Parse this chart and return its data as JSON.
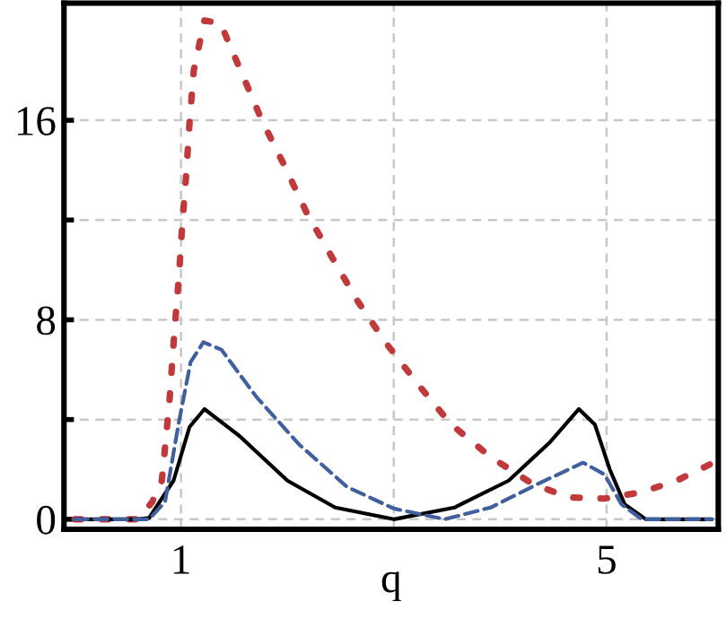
{
  "chart_data": {
    "type": "line",
    "xlabel": "q",
    "xlim": [
      -0.1,
      6.05
    ],
    "ylim": [
      -0.4,
      20.7
    ],
    "xticks": [
      1,
      {
        "value": 3,
        "label": null
      },
      5
    ],
    "yticks": [
      0,
      {
        "value": 4,
        "label": null
      },
      8,
      {
        "value": 12,
        "label": null
      },
      16
    ],
    "grid": true,
    "marker": "none",
    "series": [
      {
        "color": "#000000",
        "line_style": "solid",
        "x": [
          0.0,
          0.59,
          0.7,
          0.93,
          1.08,
          1.22,
          1.55,
          2.0,
          2.45,
          3.0,
          3.57,
          4.08,
          4.47,
          4.74,
          4.89,
          5.03,
          5.17,
          5.37,
          5.99
        ],
        "values": [
          0,
          0,
          0.05,
          1.55,
          3.7,
          4.42,
          3.34,
          1.55,
          0.47,
          0,
          0.47,
          1.55,
          3.1,
          4.42,
          3.8,
          2.0,
          0.6,
          0,
          0
        ]
      },
      {
        "color": "#3f5f9e",
        "line_style": "dashed",
        "x": [
          0.0,
          0.7,
          0.85,
          0.98,
          1.09,
          1.21,
          1.38,
          1.71,
          2.11,
          2.56,
          3.0,
          3.48,
          3.91,
          4.36,
          4.78,
          4.98,
          5.14,
          5.33,
          5.99
        ],
        "values": [
          0,
          0,
          0.7,
          3.9,
          6.3,
          7.1,
          6.8,
          4.9,
          3.0,
          1.3,
          0.43,
          0,
          0.47,
          1.43,
          2.27,
          1.8,
          0.6,
          0,
          0
        ]
      },
      {
        "color": "#c0393b",
        "line_style": "dotted",
        "x": [
          0.0,
          0.6,
          0.73,
          0.82,
          0.89,
          0.94,
          0.98,
          1.01,
          1.05,
          1.08,
          1.12,
          1.17,
          1.22,
          1.37,
          1.56,
          1.76,
          1.97,
          2.18,
          2.42,
          2.66,
          2.93,
          3.23,
          3.54,
          3.91,
          4.3,
          4.64,
          4.98,
          5.32,
          5.66,
          5.97
        ],
        "values": [
          0,
          0,
          0.7,
          1.55,
          4.66,
          7.65,
          9.7,
          11.7,
          13.9,
          15.9,
          18.0,
          19.0,
          20.0,
          19.9,
          18.0,
          16.0,
          14.2,
          12.3,
          10.5,
          8.75,
          7.05,
          5.4,
          3.8,
          2.5,
          1.43,
          0.88,
          0.83,
          1.08,
          1.55,
          2.2
        ]
      }
    ]
  }
}
